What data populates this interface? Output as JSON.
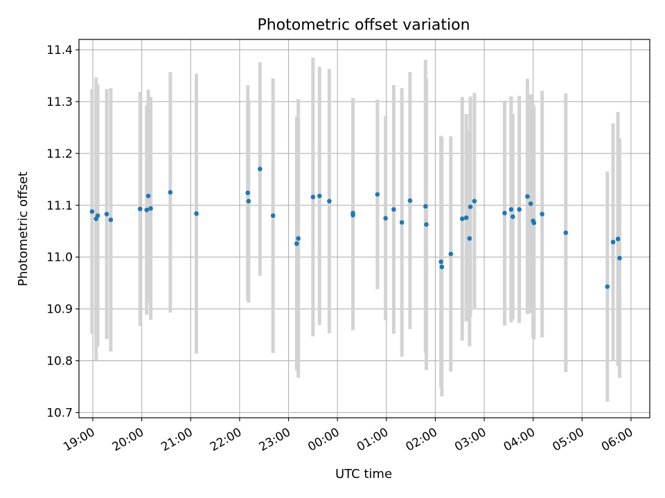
{
  "chart_data": {
    "type": "scatter",
    "title": "Photometric offset variation",
    "xlabel": "UTC time",
    "ylabel": "Photometric offset",
    "x_tick_labels": [
      "19:00",
      "20:00",
      "21:00",
      "22:00",
      "23:00",
      "00:00",
      "01:00",
      "02:00",
      "03:00",
      "04:00",
      "05:00",
      "06:00"
    ],
    "y_ticks": [
      10.7,
      10.8,
      10.9,
      11.0,
      11.1,
      11.2,
      11.3,
      11.4
    ],
    "y_tick_labels": [
      "10.7",
      "10.8",
      "10.9",
      "11.0",
      "11.1",
      "11.2",
      "11.3",
      "11.4"
    ],
    "xlim": [
      "18:43",
      "06:23"
    ],
    "ylim": [
      10.69,
      11.42
    ],
    "grid": true,
    "colors": {
      "points": "#1f77b4",
      "errorbars": "#d3d3d3",
      "grid": "#b0b0b0"
    },
    "series": [
      {
        "x": [
          "18:59",
          "19:04",
          "19:06",
          "19:17",
          "19:22",
          "19:58",
          "20:06",
          "20:08",
          "20:11",
          "20:35",
          "21:07",
          "22:10",
          "22:11",
          "22:25",
          "22:41",
          "23:10",
          "23:12",
          "23:30",
          "23:38",
          "23:50",
          "00:19",
          "00:19",
          "00:49",
          "00:59",
          "01:09",
          "01:19",
          "01:29",
          "01:48",
          "01:49",
          "02:07",
          "02:08",
          "02:19",
          "02:33",
          "02:38",
          "02:42",
          "02:43",
          "02:48",
          "03:25",
          "03:33",
          "03:35",
          "03:43",
          "03:53",
          "03:57",
          "04:00",
          "04:01",
          "04:11",
          "04:40",
          "05:31",
          "05:38",
          "05:44",
          "05:46"
        ],
        "y": [
          11.088,
          11.074,
          11.08,
          11.083,
          11.072,
          11.093,
          11.091,
          11.118,
          11.094,
          11.125,
          11.084,
          11.124,
          11.108,
          11.17,
          11.08,
          11.026,
          11.036,
          11.116,
          11.118,
          11.108,
          11.081,
          11.085,
          11.121,
          11.075,
          11.092,
          11.067,
          11.109,
          11.098,
          11.063,
          10.991,
          10.981,
          11.006,
          11.074,
          11.076,
          11.036,
          11.097,
          11.108,
          11.085,
          11.092,
          11.078,
          11.092,
          11.117,
          11.103,
          11.07,
          11.066,
          11.083,
          11.047,
          10.943,
          11.029,
          11.035,
          10.998
        ],
        "error": [
          0.236,
          0.273,
          0.253,
          0.241,
          0.254,
          0.226,
          0.202,
          0.205,
          0.215,
          0.232,
          0.27,
          0.208,
          0.196,
          0.206,
          0.265,
          0.245,
          0.269,
          0.269,
          0.249,
          0.255,
          0.222,
          0.222,
          0.183,
          0.197,
          0.24,
          0.259,
          0.248,
          0.283,
          0.281,
          0.243,
          0.25,
          0.227,
          0.235,
          0.2,
          0.208,
          0.213,
          0.209,
          0.217,
          0.218,
          0.198,
          0.219,
          0.227,
          0.211,
          0.226,
          0.225,
          0.238,
          0.269,
          0.222,
          0.229,
          0.245,
          0.231
        ]
      }
    ]
  }
}
